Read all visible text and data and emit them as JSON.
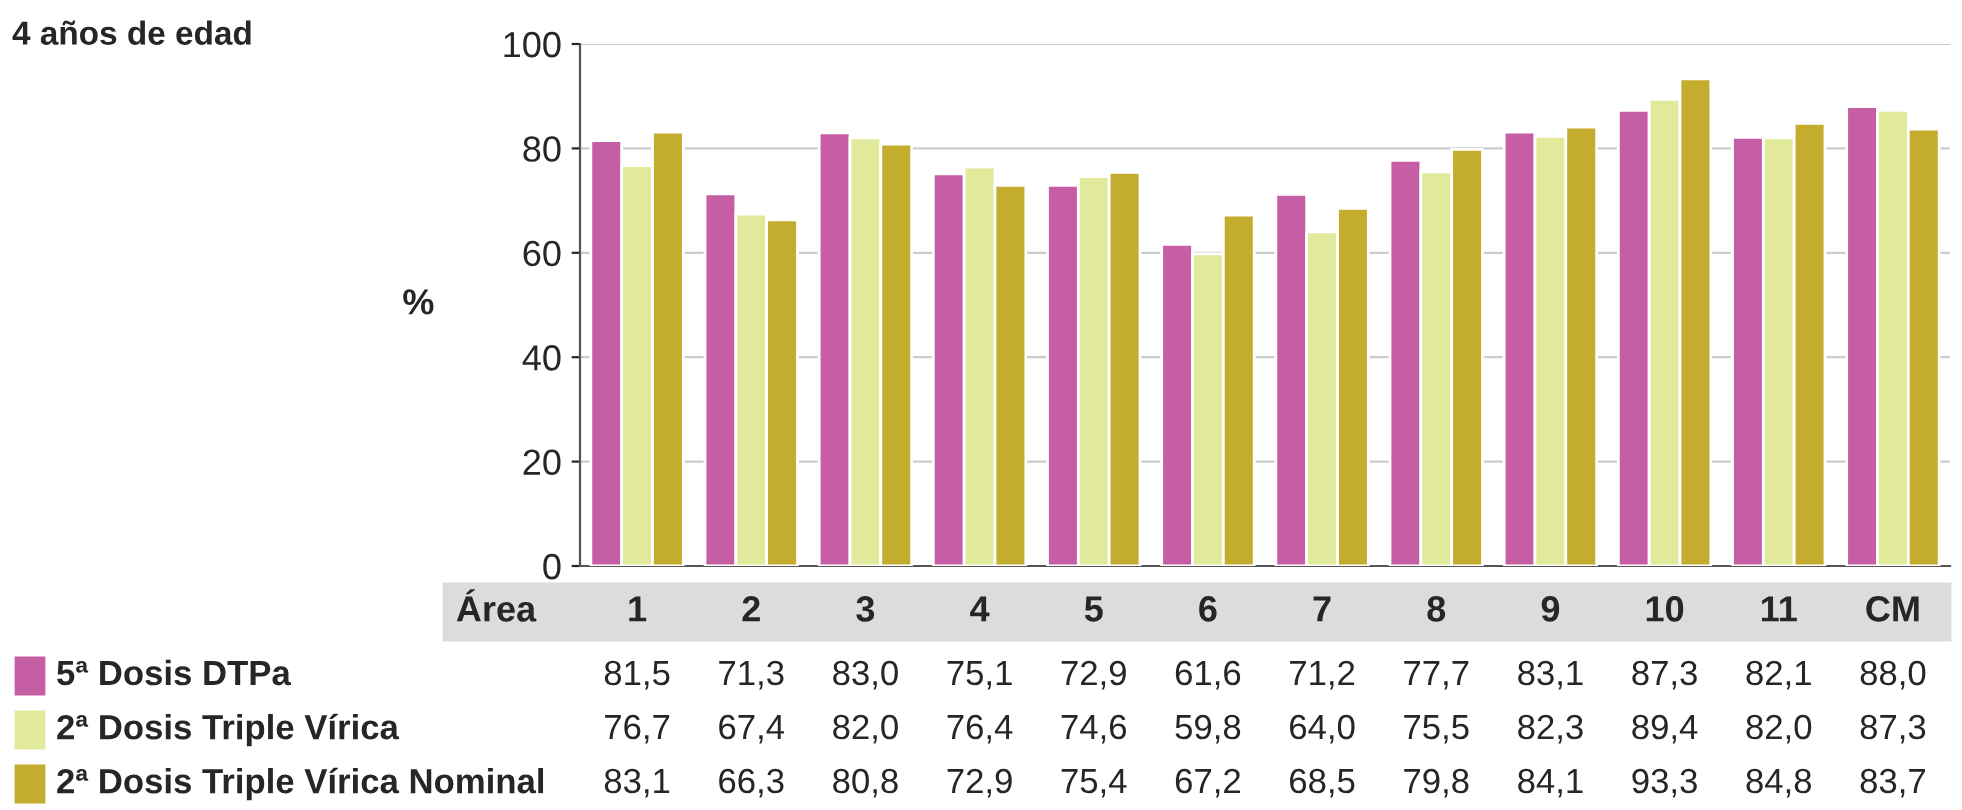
{
  "chart_data": {
    "type": "bar",
    "title": "4 años de edad",
    "ylabel": "%",
    "xlabel": "Área",
    "categories": [
      "1",
      "2",
      "3",
      "4",
      "5",
      "6",
      "7",
      "8",
      "9",
      "10",
      "11",
      "CM"
    ],
    "series": [
      {
        "name": "5ª Dosis DTPa",
        "color": "#c65ea5",
        "values": [
          81.5,
          71.3,
          83.0,
          75.1,
          72.9,
          61.6,
          71.2,
          77.7,
          83.1,
          87.3,
          82.1,
          88.0
        ],
        "value_labels": [
          "81,5",
          "71,3",
          "83,0",
          "75,1",
          "72,9",
          "61,6",
          "71,2",
          "77,7",
          "83,1",
          "87,3",
          "82,1",
          "88,0"
        ]
      },
      {
        "name": "2ª Dosis Triple Vírica",
        "color": "#e1e99a",
        "values": [
          76.7,
          67.4,
          82.0,
          76.4,
          74.6,
          59.8,
          64.0,
          75.5,
          82.3,
          89.4,
          82.0,
          87.3
        ],
        "value_labels": [
          "76,7",
          "67,4",
          "82,0",
          "76,4",
          "74,6",
          "59,8",
          "64,0",
          "75,5",
          "82,3",
          "89,4",
          "82,0",
          "87,3"
        ]
      },
      {
        "name": "2ª Dosis Triple Vírica Nominal",
        "color": "#c4ac2f",
        "values": [
          83.1,
          66.3,
          80.8,
          72.9,
          75.4,
          67.2,
          68.5,
          79.8,
          84.1,
          93.3,
          84.8,
          83.7
        ],
        "value_labels": [
          "83,1",
          "66,3",
          "80,8",
          "72,9",
          "75,4",
          "67,2",
          "68,5",
          "79,8",
          "84,1",
          "93,3",
          "84,8",
          "83,7"
        ]
      }
    ],
    "ylim": [
      0,
      100
    ],
    "yticks": [
      0,
      20,
      40,
      60,
      80,
      100
    ],
    "grid": "y",
    "legend": "bottom left"
  }
}
